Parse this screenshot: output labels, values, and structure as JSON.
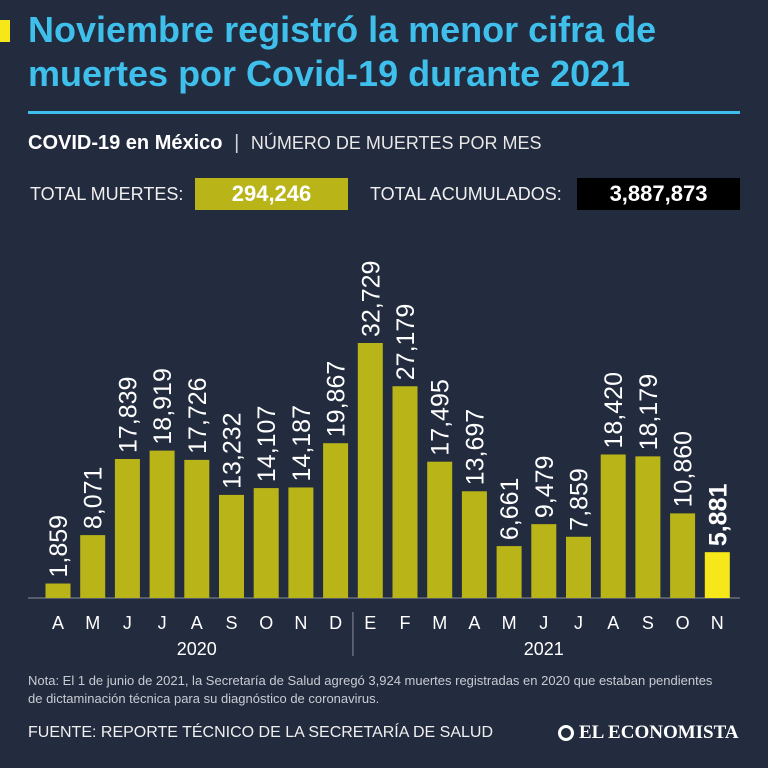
{
  "header": {
    "title": "Noviembre registró la menor cifra de muertes por Covid-19 durante 2021",
    "subtitle_bold": "COVID-19 en México",
    "subtitle_separator": "|",
    "subtitle_light": "NÚMERO DE MUERTES POR MES"
  },
  "totals": {
    "deaths_label": "TOTAL MUERTES:",
    "deaths_value": "294,246",
    "cumulative_label": "TOTAL ACUMULADOS:",
    "cumulative_value": "3,887,873"
  },
  "chart_data": {
    "type": "bar",
    "title": "NÚMERO DE MUERTES POR MES",
    "categories": [
      "A",
      "M",
      "J",
      "J",
      "A",
      "S",
      "O",
      "N",
      "D",
      "E",
      "F",
      "M",
      "A",
      "M",
      "J",
      "J",
      "A",
      "S",
      "O",
      "N"
    ],
    "values": [
      1859,
      8071,
      17839,
      18919,
      17726,
      13232,
      14107,
      14187,
      19867,
      32729,
      27179,
      17495,
      13697,
      6661,
      9479,
      7859,
      18420,
      18179,
      10860,
      5881
    ],
    "labels": [
      "1,859",
      "8,071",
      "17,839",
      "18,919",
      "17,726",
      "13,232",
      "14,107",
      "14,187",
      "19,867",
      "32,729",
      "27,179",
      "17,495",
      "13,697",
      "6,661",
      "9,479",
      "7,859",
      "18,420",
      "18,179",
      "10,860",
      "5,881"
    ],
    "highlight_index": 19,
    "year_groups": [
      {
        "label": "2020",
        "from": 0,
        "to": 8
      },
      {
        "label": "2021",
        "from": 9,
        "to": 19
      }
    ],
    "ylim": [
      0,
      33000
    ],
    "xlabel": "",
    "ylabel": ""
  },
  "footer": {
    "note": "Nota: El 1 de junio de 2021, la Secretaría de Salud agregó 3,924 muertes registradas en 2020 que estaban pendientes de dictaminación técnica para su diagnóstico de coronavirus.",
    "source": "FUENTE: REPORTE TÉCNICO DE LA SECRETARÍA DE SALUD",
    "logo_text": "EL ECONOMISTA"
  },
  "colors": {
    "background": "#232b3e",
    "title": "#3fc0ec",
    "bar": "#b9b519",
    "bar_highlight": "#f5e71a",
    "cumulative_box": "#000000"
  }
}
